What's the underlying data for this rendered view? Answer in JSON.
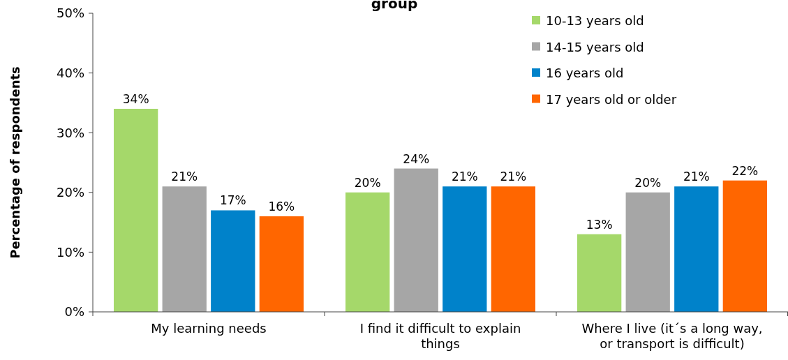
{
  "chart_data": {
    "type": "bar",
    "title": "group",
    "ylabel": "Percentage of respondents",
    "categories": [
      "My learning needs",
      "I find it difficult to explain things",
      "Where I live (it´s a long way, or transport is difficult)"
    ],
    "series": [
      {
        "name": "10-13 years old",
        "color": "#a5d86a",
        "values": [
          34,
          20,
          13
        ],
        "value_labels": [
          "34%",
          "20%",
          "13%"
        ]
      },
      {
        "name": "14-15 years old",
        "color": "#a6a6a6",
        "values": [
          21,
          24,
          20
        ],
        "value_labels": [
          "21%",
          "24%",
          "20%"
        ]
      },
      {
        "name": "16 years old",
        "color": "#0082ca",
        "values": [
          17,
          21,
          21
        ],
        "value_labels": [
          "17%",
          "21%",
          "21%"
        ]
      },
      {
        "name": "17 years old or older",
        "color": "#ff6600",
        "values": [
          16,
          21,
          22
        ],
        "value_labels": [
          "16%",
          "21%",
          "22%"
        ]
      }
    ],
    "ylim": [
      0,
      50
    ],
    "yticks": [
      {
        "value": 0,
        "label": "0%"
      },
      {
        "value": 10,
        "label": "10%"
      },
      {
        "value": 20,
        "label": "20%"
      },
      {
        "value": 30,
        "label": "30%"
      },
      {
        "value": 40,
        "label": "40%"
      },
      {
        "value": 50,
        "label": "50%"
      }
    ],
    "legend": "top right",
    "grid": false
  }
}
